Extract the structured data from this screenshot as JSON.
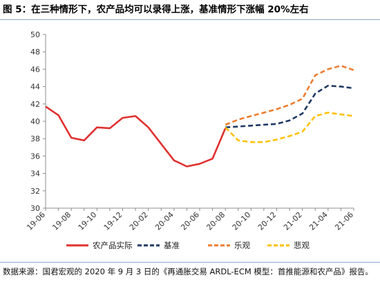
{
  "figure": {
    "title": "图 5：在三种情形下，农产品均可以录得上涨，基准情形下涨幅 20%左右"
  },
  "source_note": "数据来源：国君宏观的 2020 年 9 月 3 日的《再通胀交易 ARDL-ECM 模型：首推能源和农产品》报告。",
  "chart_data": {
    "type": "line",
    "title": "",
    "xlabel": "",
    "ylabel": "",
    "x_tick_labels": [
      "19-06",
      "19-08",
      "19-10",
      "19-12",
      "20-02",
      "20-04",
      "20-06",
      "20-08",
      "20-10",
      "20-12",
      "21-02",
      "21-04",
      "21-06"
    ],
    "ylim": [
      30,
      50
    ],
    "y_ticks": [
      30,
      32,
      34,
      36,
      38,
      40,
      42,
      44,
      46,
      48,
      50
    ],
    "grid": false,
    "legend_position": "bottom",
    "series": [
      {
        "name": "农产品实际",
        "color": "#e03030",
        "dash": "solid",
        "x": [
          "19-06",
          "19-07",
          "19-08",
          "19-09",
          "19-10",
          "19-11",
          "19-12",
          "20-01",
          "20-02",
          "20-03",
          "20-04",
          "20-05",
          "20-06",
          "20-07",
          "20-08"
        ],
        "values": [
          41.7,
          40.7,
          38.1,
          37.8,
          39.3,
          39.2,
          40.4,
          40.6,
          39.3,
          37.4,
          35.5,
          34.8,
          35.1,
          35.7,
          39.2
        ]
      },
      {
        "name": "基准",
        "color": "#1f3864",
        "dash": "dash",
        "x": [
          "20-08",
          "20-09",
          "20-10",
          "20-11",
          "20-12",
          "21-01",
          "21-02",
          "21-03",
          "21-04",
          "21-05",
          "21-06"
        ],
        "values": [
          39.3,
          39.4,
          39.5,
          39.6,
          39.7,
          40.1,
          40.9,
          43.2,
          44.1,
          44.0,
          43.8
        ]
      },
      {
        "name": "乐观",
        "color": "#ed7d31",
        "dash": "dash",
        "x": [
          "20-08",
          "20-09",
          "20-10",
          "20-11",
          "20-12",
          "21-01",
          "21-02",
          "21-03",
          "21-04",
          "21-05",
          "21-06"
        ],
        "values": [
          39.6,
          40.2,
          40.6,
          41.0,
          41.4,
          41.9,
          42.6,
          45.3,
          46.0,
          46.4,
          45.9
        ]
      },
      {
        "name": "悲观",
        "color": "#ffc000",
        "dash": "dash",
        "x": [
          "20-08",
          "20-09",
          "20-10",
          "20-11",
          "20-12",
          "21-01",
          "21-02",
          "21-03",
          "21-04",
          "21-05",
          "21-06"
        ],
        "values": [
          39.3,
          37.8,
          37.6,
          37.6,
          37.9,
          38.3,
          38.8,
          40.6,
          41.0,
          40.8,
          40.6
        ]
      }
    ]
  }
}
